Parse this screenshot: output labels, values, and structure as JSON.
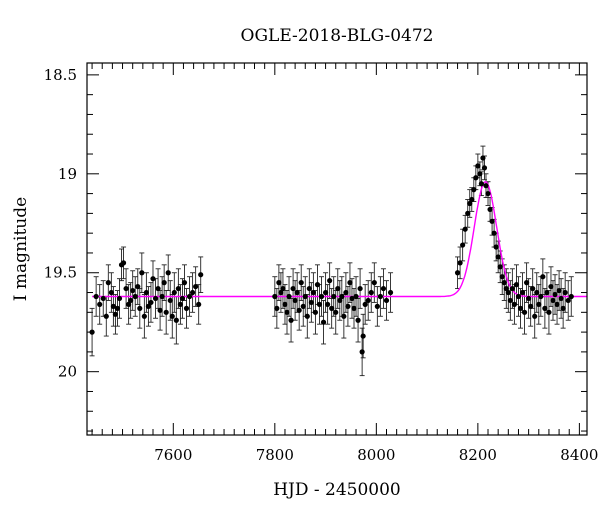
{
  "chart_data": {
    "type": "scatter",
    "title": "OGLE-2018-BLG-0472",
    "xlabel": "HJD - 2450000",
    "ylabel": "I magnitude",
    "xlim": [
      7430,
      8415
    ],
    "ylim": [
      20.32,
      18.44
    ],
    "y_inverted": true,
    "grid": false,
    "xticks_major": [
      7600,
      7800,
      8000,
      8200,
      8400
    ],
    "xtick_labels": [
      "7600",
      "7800",
      "8000",
      "8200",
      "8400"
    ],
    "xticks_minor_step": 20,
    "yticks_major": [
      18.5,
      19,
      19.5,
      20
    ],
    "ytick_labels": [
      "18.5",
      "19",
      "19.5",
      "20"
    ],
    "yticks_minor_step": 0.1,
    "colors": {
      "data": "#000000",
      "error_bar": "#222222",
      "model": "#ff00ff"
    },
    "model": {
      "t0": 8215,
      "baseline": 19.62,
      "peak": 19.04,
      "width": 22
    },
    "series": [
      {
        "points": [
          [
            7440,
            19.8,
            0.12
          ],
          [
            7448,
            19.62,
            0.1
          ],
          [
            7455,
            19.66,
            0.1
          ],
          [
            7462,
            19.63,
            0.09
          ],
          [
            7468,
            19.72,
            0.1
          ],
          [
            7472,
            19.55,
            0.09
          ],
          [
            7478,
            19.6,
            0.1
          ],
          [
            7482,
            19.67,
            0.1
          ],
          [
            7486,
            19.71,
            0.1
          ],
          [
            7490,
            19.68,
            0.09
          ],
          [
            7494,
            19.63,
            0.1
          ],
          [
            7498,
            19.46,
            0.08
          ],
          [
            7502,
            19.45,
            0.08
          ],
          [
            7507,
            19.58,
            0.1
          ],
          [
            7512,
            19.66,
            0.1
          ],
          [
            7516,
            19.64,
            0.09
          ],
          [
            7520,
            19.59,
            0.1
          ],
          [
            7525,
            19.62,
            0.1
          ],
          [
            7530,
            19.57,
            0.09
          ],
          [
            7534,
            19.68,
            0.1
          ],
          [
            7538,
            19.5,
            0.1
          ],
          [
            7543,
            19.72,
            0.11
          ],
          [
            7547,
            19.6,
            0.1
          ],
          [
            7551,
            19.67,
            0.1
          ],
          [
            7556,
            19.65,
            0.1
          ],
          [
            7560,
            19.53,
            0.09
          ],
          [
            7565,
            19.63,
            0.1
          ],
          [
            7570,
            19.58,
            0.1
          ],
          [
            7574,
            19.69,
            0.1
          ],
          [
            7578,
            19.62,
            0.1
          ],
          [
            7582,
            19.55,
            0.09
          ],
          [
            7586,
            19.7,
            0.11
          ],
          [
            7590,
            19.5,
            0.09
          ],
          [
            7594,
            19.64,
            0.1
          ],
          [
            7598,
            19.72,
            0.11
          ],
          [
            7602,
            19.6,
            0.1
          ],
          [
            7606,
            19.74,
            0.12
          ],
          [
            7610,
            19.58,
            0.1
          ],
          [
            7614,
            19.66,
            0.1
          ],
          [
            7618,
            19.63,
            0.1
          ],
          [
            7622,
            19.55,
            0.09
          ],
          [
            7626,
            19.68,
            0.1
          ],
          [
            7632,
            19.62,
            0.1
          ],
          [
            7638,
            19.6,
            0.1
          ],
          [
            7644,
            19.57,
            0.1
          ],
          [
            7650,
            19.66,
            0.1
          ],
          [
            7654,
            19.51,
            0.09
          ],
          [
            7800,
            19.62,
            0.1
          ],
          [
            7804,
            19.68,
            0.1
          ],
          [
            7808,
            19.55,
            0.09
          ],
          [
            7812,
            19.6,
            0.1
          ],
          [
            7816,
            19.58,
            0.1
          ],
          [
            7820,
            19.66,
            0.1
          ],
          [
            7824,
            19.7,
            0.11
          ],
          [
            7828,
            19.62,
            0.1
          ],
          [
            7832,
            19.74,
            0.11
          ],
          [
            7836,
            19.58,
            0.1
          ],
          [
            7840,
            19.64,
            0.1
          ],
          [
            7844,
            19.6,
            0.1
          ],
          [
            7848,
            19.69,
            0.1
          ],
          [
            7852,
            19.55,
            0.09
          ],
          [
            7856,
            19.67,
            0.1
          ],
          [
            7860,
            19.62,
            0.1
          ],
          [
            7864,
            19.72,
            0.11
          ],
          [
            7868,
            19.58,
            0.1
          ],
          [
            7872,
            19.65,
            0.1
          ],
          [
            7876,
            19.6,
            0.1
          ],
          [
            7880,
            19.7,
            0.11
          ],
          [
            7884,
            19.56,
            0.1
          ],
          [
            7888,
            19.66,
            0.1
          ],
          [
            7892,
            19.62,
            0.1
          ],
          [
            7896,
            19.75,
            0.11
          ],
          [
            7900,
            19.6,
            0.1
          ],
          [
            7904,
            19.66,
            0.1
          ],
          [
            7908,
            19.54,
            0.09
          ],
          [
            7912,
            19.68,
            0.1
          ],
          [
            7916,
            19.62,
            0.1
          ],
          [
            7920,
            19.7,
            0.11
          ],
          [
            7924,
            19.58,
            0.1
          ],
          [
            7928,
            19.64,
            0.1
          ],
          [
            7932,
            19.62,
            0.1
          ],
          [
            7936,
            19.72,
            0.11
          ],
          [
            7940,
            19.6,
            0.1
          ],
          [
            7944,
            19.67,
            0.1
          ],
          [
            7948,
            19.55,
            0.1
          ],
          [
            7952,
            19.63,
            0.1
          ],
          [
            7956,
            19.68,
            0.1
          ],
          [
            7960,
            19.62,
            0.1
          ],
          [
            7964,
            19.74,
            0.11
          ],
          [
            7968,
            19.58,
            0.1
          ],
          [
            7972,
            19.9,
            0.12
          ],
          [
            7974,
            19.82,
            0.11
          ],
          [
            7978,
            19.66,
            0.1
          ],
          [
            7984,
            19.64,
            0.1
          ],
          [
            7990,
            19.6,
            0.1
          ],
          [
            7996,
            19.55,
            0.1
          ],
          [
            8002,
            19.67,
            0.1
          ],
          [
            8008,
            19.62,
            0.1
          ],
          [
            8014,
            19.58,
            0.1
          ],
          [
            8020,
            19.64,
            0.1
          ],
          [
            8028,
            19.6,
            0.1
          ],
          [
            8160,
            19.5,
            0.08
          ],
          [
            8165,
            19.45,
            0.08
          ],
          [
            8170,
            19.36,
            0.08
          ],
          [
            8175,
            19.28,
            0.07
          ],
          [
            8180,
            19.2,
            0.07
          ],
          [
            8184,
            19.15,
            0.07
          ],
          [
            8188,
            19.13,
            0.06
          ],
          [
            8192,
            19.08,
            0.06
          ],
          [
            8196,
            19.02,
            0.06
          ],
          [
            8200,
            18.96,
            0.06
          ],
          [
            8204,
            19.0,
            0.06
          ],
          [
            8207,
            19.05,
            0.06
          ],
          [
            8210,
            18.92,
            0.06
          ],
          [
            8213,
            18.97,
            0.06
          ],
          [
            8216,
            19.06,
            0.06
          ],
          [
            8220,
            19.1,
            0.06
          ],
          [
            8224,
            19.18,
            0.06
          ],
          [
            8228,
            19.24,
            0.07
          ],
          [
            8232,
            19.3,
            0.07
          ],
          [
            8236,
            19.37,
            0.07
          ],
          [
            8240,
            19.42,
            0.08
          ],
          [
            8244,
            19.47,
            0.08
          ],
          [
            8248,
            19.52,
            0.09
          ],
          [
            8252,
            19.55,
            0.09
          ],
          [
            8256,
            19.58,
            0.1
          ],
          [
            8260,
            19.6,
            0.1
          ],
          [
            8264,
            19.64,
            0.1
          ],
          [
            8268,
            19.58,
            0.1
          ],
          [
            8272,
            19.66,
            0.1
          ],
          [
            8276,
            19.56,
            0.1
          ],
          [
            8280,
            19.62,
            0.1
          ],
          [
            8284,
            19.68,
            0.1
          ],
          [
            8288,
            19.6,
            0.1
          ],
          [
            8292,
            19.7,
            0.11
          ],
          [
            8296,
            19.55,
            0.1
          ],
          [
            8300,
            19.63,
            0.1
          ],
          [
            8304,
            19.67,
            0.1
          ],
          [
            8308,
            19.58,
            0.1
          ],
          [
            8312,
            19.72,
            0.11
          ],
          [
            8316,
            19.6,
            0.1
          ],
          [
            8320,
            19.66,
            0.1
          ],
          [
            8324,
            19.62,
            0.1
          ],
          [
            8328,
            19.52,
            0.09
          ],
          [
            8332,
            19.68,
            0.1
          ],
          [
            8336,
            19.6,
            0.1
          ],
          [
            8340,
            19.7,
            0.11
          ],
          [
            8344,
            19.57,
            0.1
          ],
          [
            8348,
            19.64,
            0.1
          ],
          [
            8352,
            19.61,
            0.1
          ],
          [
            8356,
            19.66,
            0.1
          ],
          [
            8360,
            19.59,
            0.1
          ],
          [
            8364,
            19.63,
            0.1
          ],
          [
            8368,
            19.68,
            0.1
          ],
          [
            8372,
            19.6,
            0.1
          ],
          [
            8378,
            19.64,
            0.1
          ],
          [
            8384,
            19.62,
            0.1
          ]
        ]
      }
    ]
  }
}
